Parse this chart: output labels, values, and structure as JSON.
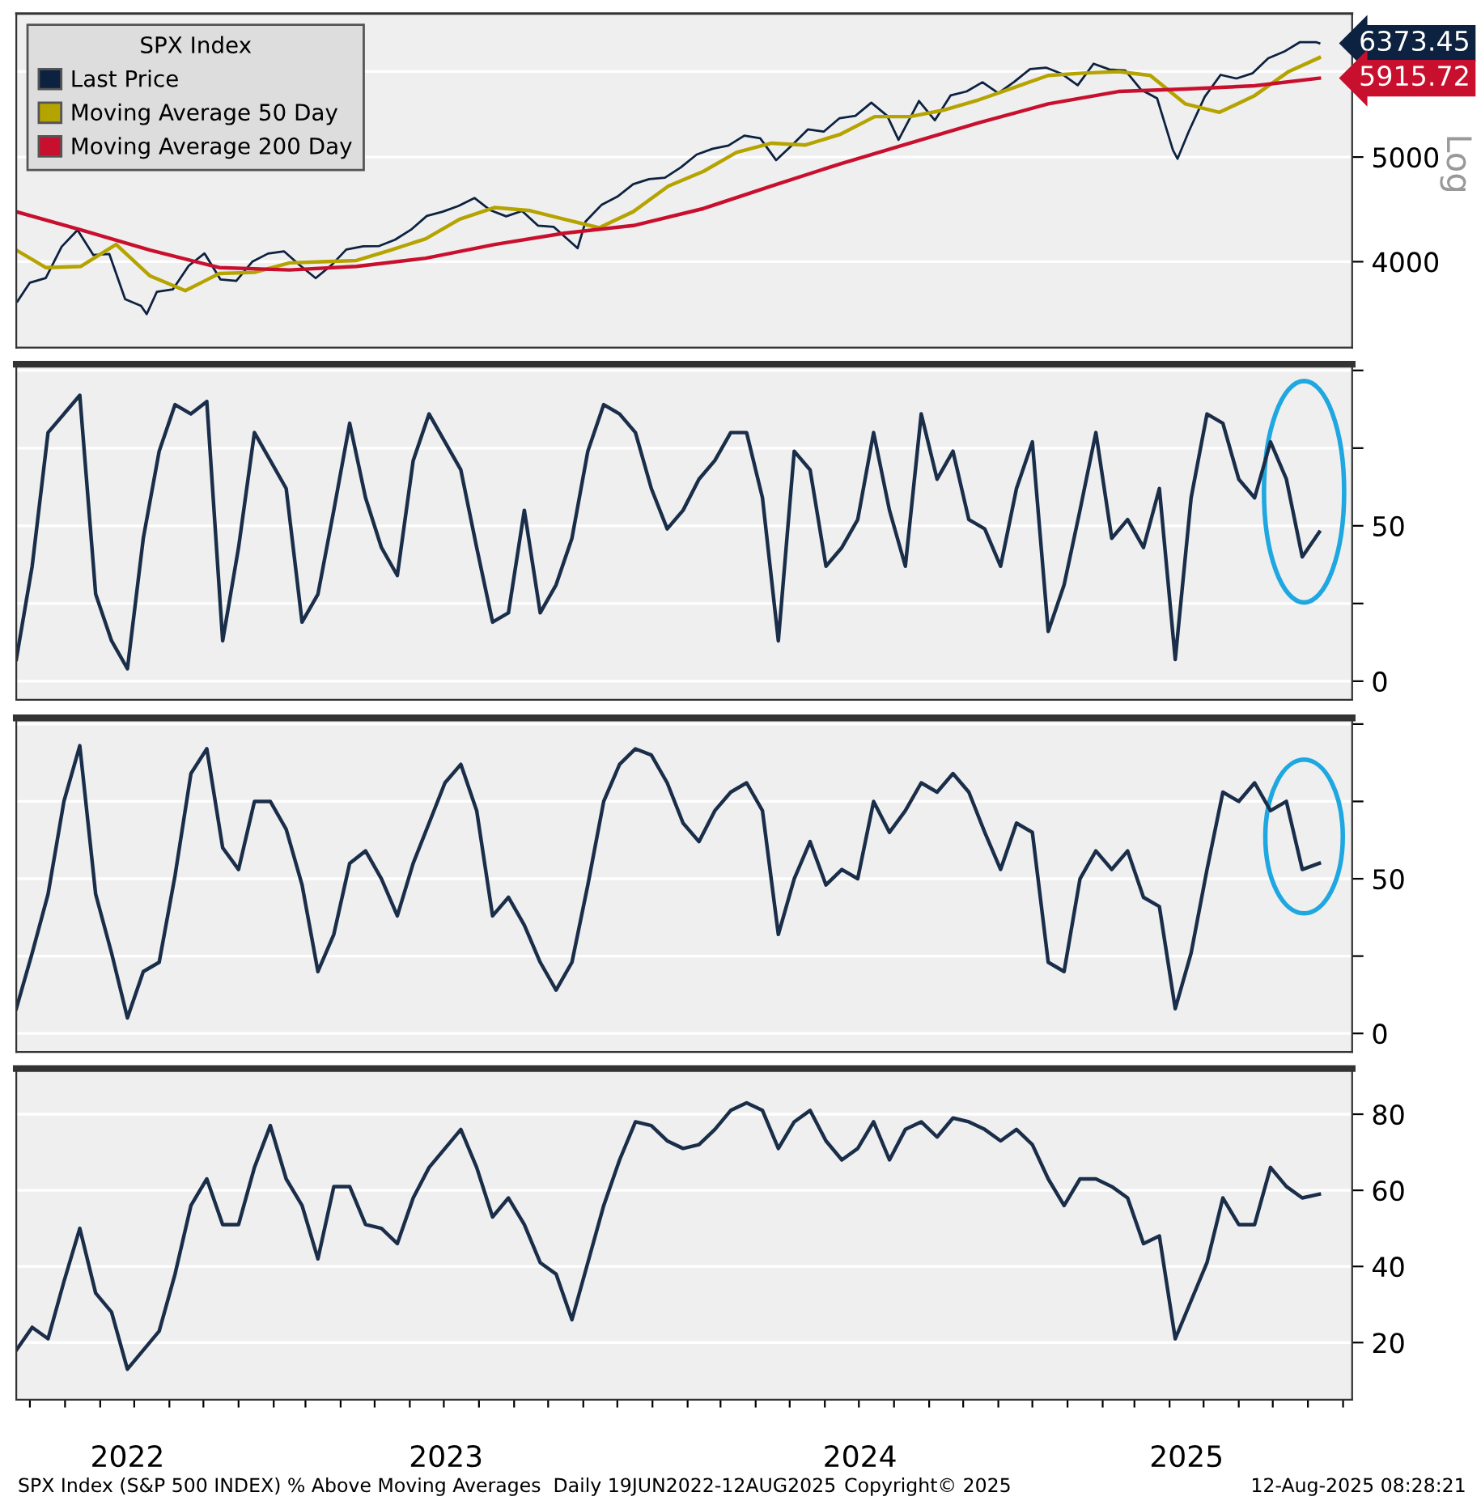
{
  "chart_data": [
    {
      "type": "line",
      "legend_title": "SPX Index",
      "legend": "top left",
      "grid": "y",
      "log": "y",
      "ylabel": "Log",
      "tick_labels": "y",
      "xlim": [
        "2022-06-19",
        "2025-09-09"
      ],
      "ylim": [
        3330,
        6790
      ],
      "yticks": [
        4000,
        5000,
        {
          "value": 6000,
          "label": null
        }
      ],
      "series": [
        {
          "name": "Last Price",
          "color": "#0d2240",
          "x": [
            "2022-06-20",
            "2022-07-01",
            "2022-07-15",
            "2022-07-29",
            "2022-08-12",
            "2022-08-26",
            "2022-09-09",
            "2022-09-23",
            "2022-10-07",
            "2022-10-12",
            "2022-10-21",
            "2022-11-04",
            "2022-11-18",
            "2022-12-02",
            "2022-12-16",
            "2022-12-30",
            "2023-01-13",
            "2023-01-27",
            "2023-02-10",
            "2023-02-24",
            "2023-03-10",
            "2023-03-24",
            "2023-04-06",
            "2023-04-21",
            "2023-05-05",
            "2023-05-19",
            "2023-06-02",
            "2023-06-16",
            "2023-06-30",
            "2023-07-14",
            "2023-07-28",
            "2023-08-11",
            "2023-08-25",
            "2023-09-08",
            "2023-09-22",
            "2023-10-06",
            "2023-10-27",
            "2023-11-03",
            "2023-11-17",
            "2023-12-01",
            "2023-12-15",
            "2023-12-29",
            "2024-01-12",
            "2024-01-26",
            "2024-02-09",
            "2024-02-23",
            "2024-03-08",
            "2024-03-22",
            "2024-04-05",
            "2024-04-19",
            "2024-05-03",
            "2024-05-17",
            "2024-05-31",
            "2024-06-14",
            "2024-06-28",
            "2024-07-12",
            "2024-07-26",
            "2024-08-05",
            "2024-08-23",
            "2024-09-06",
            "2024-09-20",
            "2024-10-04",
            "2024-10-18",
            "2024-11-01",
            "2024-11-15",
            "2024-11-29",
            "2024-12-13",
            "2024-12-27",
            "2025-01-10",
            "2025-01-24",
            "2025-02-07",
            "2025-02-21",
            "2025-03-07",
            "2025-03-21",
            "2025-04-04",
            "2025-04-08",
            "2025-04-18",
            "2025-05-02",
            "2025-05-16",
            "2025-05-30",
            "2025-06-13",
            "2025-06-27",
            "2025-07-11",
            "2025-07-25",
            "2025-08-08",
            "2025-08-11"
          ],
          "values": [
            3675,
            3825,
            3863,
            4130,
            4280,
            4057,
            4067,
            3693,
            3640,
            3577,
            3752,
            3770,
            3965,
            4071,
            3852,
            3840,
            3999,
            4070,
            4090,
            3970,
            3862,
            3971,
            4105,
            4133,
            4136,
            4192,
            4282,
            4410,
            4450,
            4505,
            4582,
            4464,
            4406,
            4457,
            4320,
            4308,
            4117,
            4358,
            4514,
            4595,
            4719,
            4770,
            4784,
            4891,
            5027,
            5089,
            5124,
            5234,
            5204,
            4967,
            5128,
            5303,
            5278,
            5432,
            5460,
            5615,
            5459,
            5186,
            5635,
            5408,
            5703,
            5751,
            5865,
            5729,
            5870,
            6032,
            6051,
            5970,
            5827,
            6101,
            6026,
            6013,
            5770,
            5667,
            5074,
            4982,
            5282,
            5686,
            5958,
            5912,
            5977,
            6173,
            6260,
            6389,
            6389,
            6373.45
          ]
        },
        {
          "name": "Moving Average 50 Day",
          "color": "#b5a300",
          "x": [
            "2022-06-19",
            "2022-07-15",
            "2022-08-15",
            "2022-09-15",
            "2022-10-15",
            "2022-11-15",
            "2022-12-15",
            "2023-01-15",
            "2023-02-15",
            "2023-03-15",
            "2023-04-15",
            "2023-05-15",
            "2023-06-15",
            "2023-07-15",
            "2023-08-15",
            "2023-09-15",
            "2023-10-15",
            "2023-11-15",
            "2023-12-15",
            "2024-01-15",
            "2024-02-15",
            "2024-03-15",
            "2024-04-15",
            "2024-05-15",
            "2024-06-15",
            "2024-07-15",
            "2024-08-15",
            "2024-09-15",
            "2024-10-15",
            "2024-11-15",
            "2024-12-15",
            "2025-01-15",
            "2025-02-15",
            "2025-03-15",
            "2025-04-15",
            "2025-05-15",
            "2025-06-15",
            "2025-07-15",
            "2025-08-11"
          ],
          "values": [
            4100,
            3950,
            3960,
            4150,
            3880,
            3760,
            3900,
            3910,
            3990,
            4000,
            4010,
            4100,
            4200,
            4380,
            4490,
            4460,
            4380,
            4300,
            4450,
            4700,
            4850,
            5050,
            5150,
            5130,
            5250,
            5450,
            5450,
            5530,
            5650,
            5800,
            5950,
            5980,
            6000,
            5950,
            5600,
            5500,
            5700,
            6000,
            6180
          ]
        },
        {
          "name": "Moving Average 200 Day",
          "color": "#c8102e",
          "x": [
            "2022-06-19",
            "2022-08-15",
            "2022-10-15",
            "2022-12-15",
            "2023-02-15",
            "2023-04-15",
            "2023-06-15",
            "2023-08-15",
            "2023-10-15",
            "2023-12-15",
            "2024-02-15",
            "2024-04-15",
            "2024-06-15",
            "2024-08-15",
            "2024-10-15",
            "2024-12-15",
            "2025-02-15",
            "2025-04-15",
            "2025-06-15",
            "2025-08-11"
          ],
          "values": [
            4450,
            4280,
            4100,
            3950,
            3930,
            3960,
            4030,
            4150,
            4250,
            4320,
            4480,
            4700,
            4930,
            5150,
            5380,
            5600,
            5750,
            5780,
            5820,
            5915.72
          ]
        }
      ],
      "annotations": [
        {
          "text": "6373.45",
          "x": "2025-08-11",
          "y": 6373.45
        },
        {
          "text": "5915.72",
          "x": "2025-08-11",
          "y": 5915.72
        }
      ]
    },
    {
      "type": "line",
      "grid": "y",
      "tick_labels": "y",
      "xlim": [
        "2022-06-19",
        "2025-09-09"
      ],
      "ylim": [
        -6,
        102
      ],
      "yticks": [
        0,
        {
          "value": 25,
          "label": null
        },
        50,
        {
          "value": 75,
          "label": null
        },
        {
          "value": 100,
          "label": null
        }
      ],
      "x": [
        "2022-06-19",
        "2022-07-03",
        "2022-07-17",
        "2022-07-31",
        "2022-08-14",
        "2022-08-28",
        "2022-09-11",
        "2022-09-25",
        "2022-10-09",
        "2022-10-23",
        "2022-11-06",
        "2022-11-20",
        "2022-12-04",
        "2022-12-18",
        "2023-01-01",
        "2023-01-15",
        "2023-01-29",
        "2023-02-12",
        "2023-02-26",
        "2023-03-12",
        "2023-03-26",
        "2023-04-09",
        "2023-04-23",
        "2023-05-07",
        "2023-05-21",
        "2023-06-04",
        "2023-06-18",
        "2023-07-02",
        "2023-07-16",
        "2023-07-30",
        "2023-08-13",
        "2023-08-27",
        "2023-09-10",
        "2023-09-24",
        "2023-10-08",
        "2023-10-22",
        "2023-11-05",
        "2023-11-19",
        "2023-12-03",
        "2023-12-17",
        "2023-12-31",
        "2024-01-14",
        "2024-01-28",
        "2024-02-11",
        "2024-02-25",
        "2024-03-10",
        "2024-03-24",
        "2024-04-07",
        "2024-04-21",
        "2024-05-05",
        "2024-05-19",
        "2024-06-02",
        "2024-06-16",
        "2024-06-30",
        "2024-07-14",
        "2024-07-28",
        "2024-08-11",
        "2024-08-25",
        "2024-09-08",
        "2024-09-22",
        "2024-10-06",
        "2024-10-20",
        "2024-11-03",
        "2024-11-17",
        "2024-12-01",
        "2024-12-15",
        "2024-12-29",
        "2025-01-12",
        "2025-01-26",
        "2025-02-09",
        "2025-02-23",
        "2025-03-09",
        "2025-03-23",
        "2025-04-06",
        "2025-04-20",
        "2025-05-04",
        "2025-05-18",
        "2025-06-01",
        "2025-06-15",
        "2025-06-29",
        "2025-07-13",
        "2025-07-27",
        "2025-08-11"
      ],
      "series": [
        {
          "color": "#1a2e4a",
          "values": [
            7,
            37,
            80,
            86,
            92,
            28,
            13,
            4,
            46,
            74,
            89,
            86,
            90,
            13,
            43,
            80,
            71,
            62,
            19,
            28,
            55,
            83,
            59,
            43,
            34,
            71,
            86,
            77,
            68,
            43,
            19,
            22,
            55,
            22,
            31,
            46,
            74,
            89,
            86,
            80,
            62,
            49,
            55,
            65,
            71,
            80,
            80,
            59,
            13,
            74,
            68,
            37,
            43,
            52,
            80,
            55,
            37,
            86,
            65,
            74,
            52,
            49,
            37,
            62,
            77,
            16,
            31,
            55,
            80,
            46,
            52,
            43,
            62,
            7,
            59,
            86,
            83,
            65,
            59,
            77,
            65,
            40,
            48
          ]
        }
      ]
    },
    {
      "type": "line",
      "grid": "y",
      "tick_labels": "y",
      "xlim": [
        "2022-06-19",
        "2025-09-09"
      ],
      "ylim": [
        -6,
        102
      ],
      "yticks": [
        0,
        {
          "value": 25,
          "label": null
        },
        50,
        {
          "value": 75,
          "label": null
        },
        {
          "value": 100,
          "label": null
        }
      ],
      "x": [
        "2022-06-19",
        "2022-07-03",
        "2022-07-17",
        "2022-07-31",
        "2022-08-14",
        "2022-08-28",
        "2022-09-11",
        "2022-09-25",
        "2022-10-09",
        "2022-10-23",
        "2022-11-06",
        "2022-11-20",
        "2022-12-04",
        "2022-12-18",
        "2023-01-01",
        "2023-01-15",
        "2023-01-29",
        "2023-02-12",
        "2023-02-26",
        "2023-03-12",
        "2023-03-26",
        "2023-04-09",
        "2023-04-23",
        "2023-05-07",
        "2023-05-21",
        "2023-06-04",
        "2023-06-18",
        "2023-07-02",
        "2023-07-16",
        "2023-07-30",
        "2023-08-13",
        "2023-08-27",
        "2023-09-10",
        "2023-09-24",
        "2023-10-08",
        "2023-10-22",
        "2023-11-05",
        "2023-11-19",
        "2023-12-03",
        "2023-12-17",
        "2023-12-31",
        "2024-01-14",
        "2024-01-28",
        "2024-02-11",
        "2024-02-25",
        "2024-03-10",
        "2024-03-24",
        "2024-04-07",
        "2024-04-21",
        "2024-05-05",
        "2024-05-19",
        "2024-06-02",
        "2024-06-16",
        "2024-06-30",
        "2024-07-14",
        "2024-07-28",
        "2024-08-11",
        "2024-08-25",
        "2024-09-08",
        "2024-09-22",
        "2024-10-06",
        "2024-10-20",
        "2024-11-03",
        "2024-11-17",
        "2024-12-01",
        "2024-12-15",
        "2024-12-29",
        "2025-01-12",
        "2025-01-26",
        "2025-02-09",
        "2025-02-23",
        "2025-03-09",
        "2025-03-23",
        "2025-04-06",
        "2025-04-20",
        "2025-05-04",
        "2025-05-18",
        "2025-06-01",
        "2025-06-15",
        "2025-06-29",
        "2025-07-13",
        "2025-07-27",
        "2025-08-11"
      ],
      "series": [
        {
          "color": "#1a2e4a",
          "values": [
            8,
            26,
            45,
            75,
            93,
            45,
            26,
            5,
            20,
            23,
            51,
            84,
            92,
            60,
            53,
            75,
            75,
            66,
            48,
            20,
            32,
            55,
            59,
            50,
            38,
            55,
            68,
            81,
            87,
            72,
            38,
            44,
            35,
            23,
            14,
            23,
            48,
            75,
            87,
            92,
            90,
            81,
            68,
            62,
            72,
            78,
            81,
            72,
            32,
            50,
            62,
            48,
            53,
            50,
            75,
            65,
            72,
            81,
            78,
            84,
            78,
            65,
            53,
            68,
            65,
            23,
            20,
            50,
            59,
            53,
            59,
            44,
            41,
            8,
            26,
            53,
            78,
            75,
            81,
            72,
            75,
            53,
            55
          ]
        }
      ]
    },
    {
      "type": "line",
      "grid": "y",
      "xlim": [
        "2022-06-19",
        "2025-09-09"
      ],
      "ylim": [
        5,
        92
      ],
      "yticks": [
        20,
        40,
        60,
        80
      ],
      "xticks": [
        {
          "value": "2022-07-01",
          "label": null
        },
        {
          "value": "2022-08-01",
          "label": null
        },
        {
          "value": "2022-09-01",
          "label": null
        },
        {
          "value": "2022-10-01",
          "label": null
        },
        {
          "value": "2022-11-01",
          "label": null
        },
        {
          "value": "2022-12-01",
          "label": null
        },
        {
          "value": "2023-01-01",
          "label": null
        },
        {
          "value": "2023-02-01",
          "label": null
        },
        {
          "value": "2023-03-01",
          "label": null
        },
        {
          "value": "2023-04-01",
          "label": null
        },
        {
          "value": "2023-05-01",
          "label": null
        },
        {
          "value": "2023-06-01",
          "label": null
        },
        {
          "value": "2023-07-01",
          "label": null
        },
        {
          "value": "2023-08-01",
          "label": null
        },
        {
          "value": "2023-09-01",
          "label": null
        },
        {
          "value": "2023-10-01",
          "label": null
        },
        {
          "value": "2023-11-01",
          "label": null
        },
        {
          "value": "2023-12-01",
          "label": null
        },
        {
          "value": "2024-01-01",
          "label": null
        },
        {
          "value": "2024-02-01",
          "label": null
        },
        {
          "value": "2024-03-01",
          "label": null
        },
        {
          "value": "2024-04-01",
          "label": null
        },
        {
          "value": "2024-05-01",
          "label": null
        },
        {
          "value": "2024-06-01",
          "label": null
        },
        {
          "value": "2024-07-01",
          "label": null
        },
        {
          "value": "2024-08-01",
          "label": null
        },
        {
          "value": "2024-09-01",
          "label": null
        },
        {
          "value": "2024-10-01",
          "label": null
        },
        {
          "value": "2024-11-01",
          "label": null
        },
        {
          "value": "2024-12-01",
          "label": null
        },
        {
          "value": "2025-01-01",
          "label": null
        },
        {
          "value": "2025-02-01",
          "label": null
        },
        {
          "value": "2025-03-01",
          "label": null
        },
        {
          "value": "2025-04-01",
          "label": null
        },
        {
          "value": "2025-05-01",
          "label": null
        },
        {
          "value": "2025-06-01",
          "label": null
        },
        {
          "value": "2025-07-01",
          "label": null
        },
        {
          "value": "2025-08-01",
          "label": null
        },
        {
          "value": "2025-09-01",
          "label": null
        },
        {
          "value": "2022-09-25",
          "label": "2022"
        },
        {
          "value": "2023-07-03",
          "label": "2023"
        },
        {
          "value": "2024-07-02",
          "label": "2024"
        },
        {
          "value": "2025-04-16",
          "label": "2025"
        }
      ],
      "x": [
        "2022-06-19",
        "2022-07-03",
        "2022-07-17",
        "2022-07-31",
        "2022-08-14",
        "2022-08-28",
        "2022-09-11",
        "2022-09-25",
        "2022-10-09",
        "2022-10-23",
        "2022-11-06",
        "2022-11-20",
        "2022-12-04",
        "2022-12-18",
        "2023-01-01",
        "2023-01-15",
        "2023-01-29",
        "2023-02-12",
        "2023-02-26",
        "2023-03-12",
        "2023-03-26",
        "2023-04-09",
        "2023-04-23",
        "2023-05-07",
        "2023-05-21",
        "2023-06-04",
        "2023-06-18",
        "2023-07-02",
        "2023-07-16",
        "2023-07-30",
        "2023-08-13",
        "2023-08-27",
        "2023-09-10",
        "2023-09-24",
        "2023-10-08",
        "2023-10-22",
        "2023-11-05",
        "2023-11-19",
        "2023-12-03",
        "2023-12-17",
        "2023-12-31",
        "2024-01-14",
        "2024-01-28",
        "2024-02-11",
        "2024-02-25",
        "2024-03-10",
        "2024-03-24",
        "2024-04-07",
        "2024-04-21",
        "2024-05-05",
        "2024-05-19",
        "2024-06-02",
        "2024-06-16",
        "2024-06-30",
        "2024-07-14",
        "2024-07-28",
        "2024-08-11",
        "2024-08-25",
        "2024-09-08",
        "2024-09-22",
        "2024-10-06",
        "2024-10-20",
        "2024-11-03",
        "2024-11-17",
        "2024-12-01",
        "2024-12-15",
        "2024-12-29",
        "2025-01-12",
        "2025-01-26",
        "2025-02-09",
        "2025-02-23",
        "2025-03-09",
        "2025-03-23",
        "2025-04-06",
        "2025-04-20",
        "2025-05-04",
        "2025-05-18",
        "2025-06-01",
        "2025-06-15",
        "2025-06-29",
        "2025-07-13",
        "2025-07-27",
        "2025-08-11"
      ],
      "series": [
        {
          "color": "#1a2e4a",
          "values": [
            18,
            24,
            21,
            36,
            50,
            33,
            28,
            13,
            18,
            23,
            38,
            56,
            63,
            51,
            51,
            66,
            77,
            63,
            56,
            42,
            61,
            61,
            51,
            50,
            46,
            58,
            66,
            71,
            76,
            66,
            53,
            58,
            51,
            41,
            38,
            26,
            41,
            56,
            68,
            78,
            77,
            73,
            71,
            72,
            76,
            81,
            83,
            81,
            71,
            78,
            81,
            73,
            68,
            71,
            78,
            68,
            76,
            78,
            74,
            79,
            78,
            76,
            73,
            76,
            72,
            63,
            56,
            63,
            63,
            61,
            58,
            46,
            48,
            21,
            31,
            41,
            58,
            51,
            51,
            66,
            61,
            58,
            59
          ]
        }
      ],
      "annotations": [
        "SPX Index (S&P 500 INDEX) % Above Moving Averages  Daily 19JUN2022-12AUG2025",
        "Copyright© 2025",
        "12-Aug-2025 08:28:21"
      ]
    }
  ]
}
